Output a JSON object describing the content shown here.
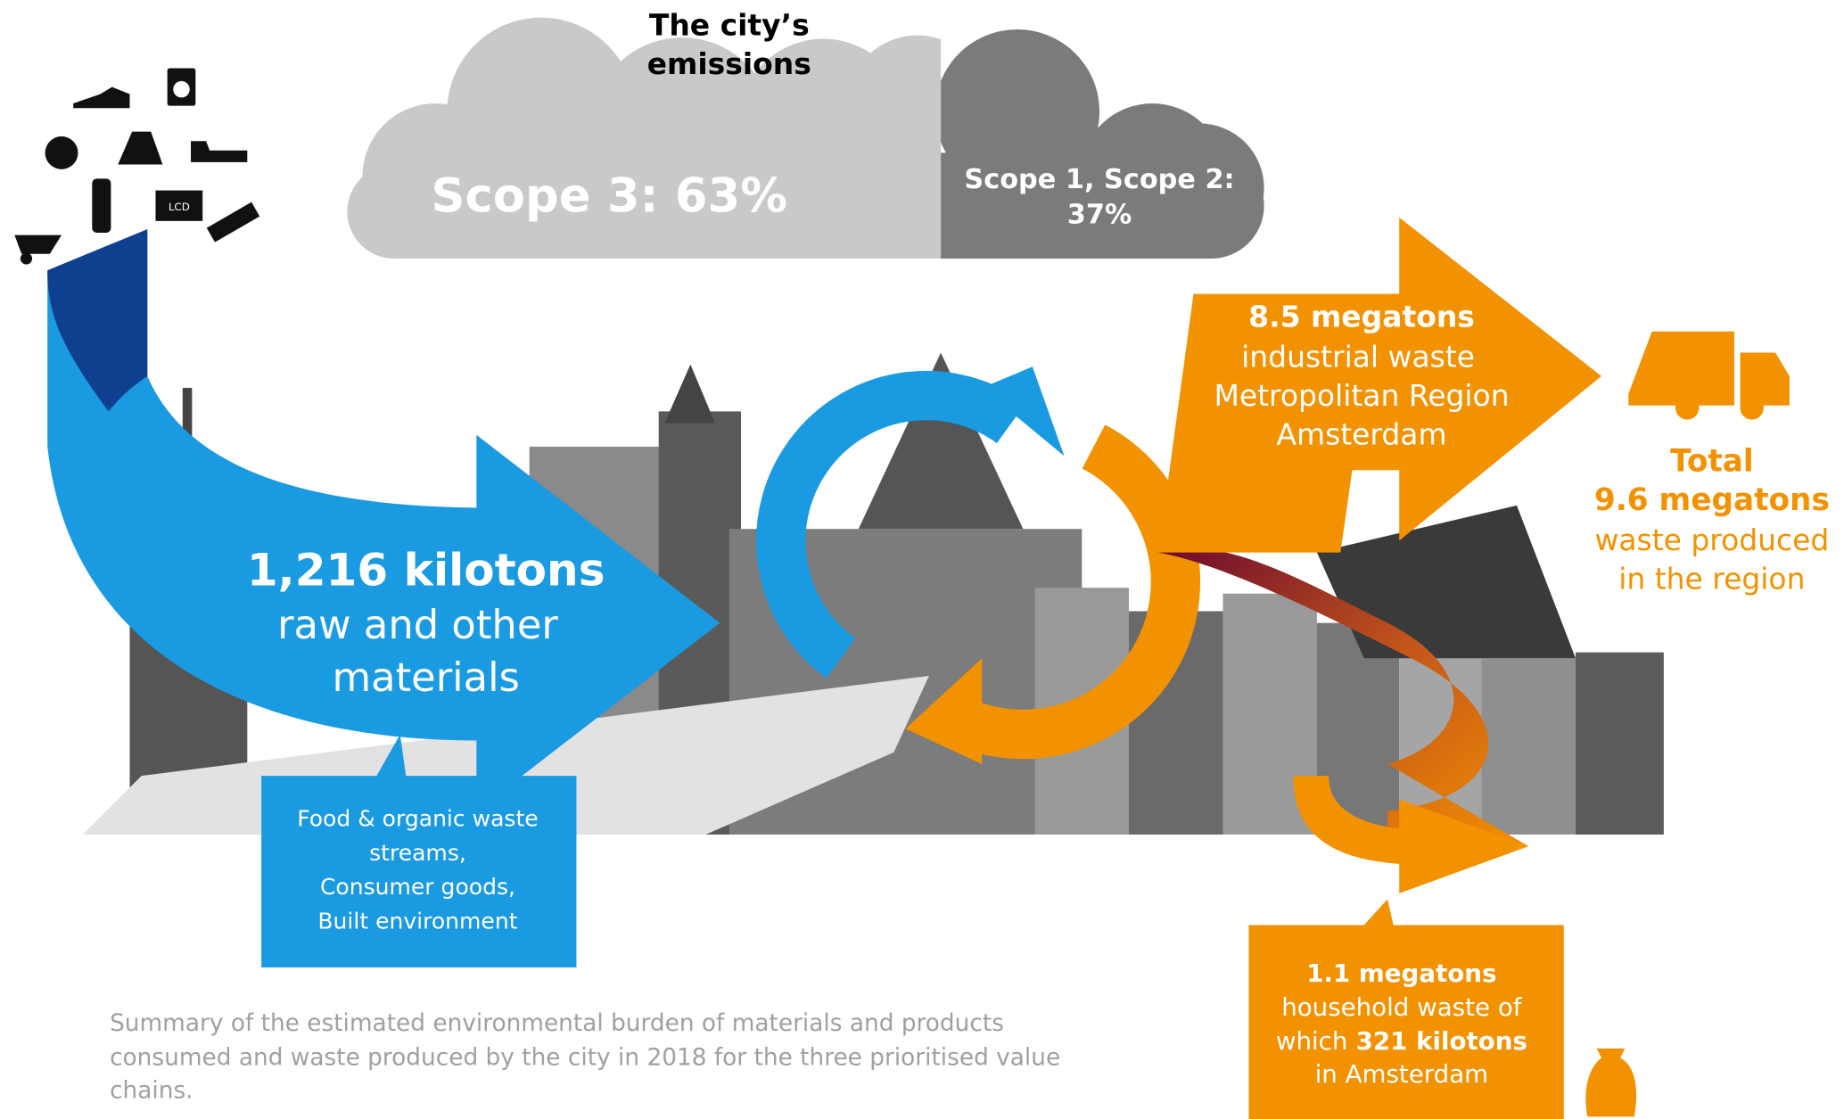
{
  "cloud": {
    "title_lines": [
      "The city’s",
      "emissions"
    ],
    "scope3": "Scope 3: 63%",
    "scope12_lines": [
      "Scope 1, Scope 2:",
      "37%"
    ]
  },
  "icons": {
    "tv_label": "LCD"
  },
  "input": {
    "amount": "1,216 kilotons",
    "lines": [
      "raw and other",
      "materials"
    ],
    "box_lines": [
      "Food & organic waste",
      "streams,",
      "Consumer goods,",
      "Built environment"
    ]
  },
  "industrial": {
    "amount": "8.5 megatons",
    "lines": [
      "industrial waste",
      "Metropolitan Region",
      "Amsterdam"
    ]
  },
  "total": {
    "label": "Total",
    "amount": "9.6 megatons",
    "lines": [
      "waste produced",
      "in the region"
    ]
  },
  "household": {
    "amount": "1.1 megatons",
    "line1": "household waste of",
    "which": "which",
    "sub_amount": "321 kilotons",
    "line3": "in Amsterdam"
  },
  "caption": {
    "lines": [
      "Summary of the estimated environmental burden of materials and products",
      "consumed and waste produced by the city in 2018 for the three prioritised value",
      "chains."
    ]
  }
}
